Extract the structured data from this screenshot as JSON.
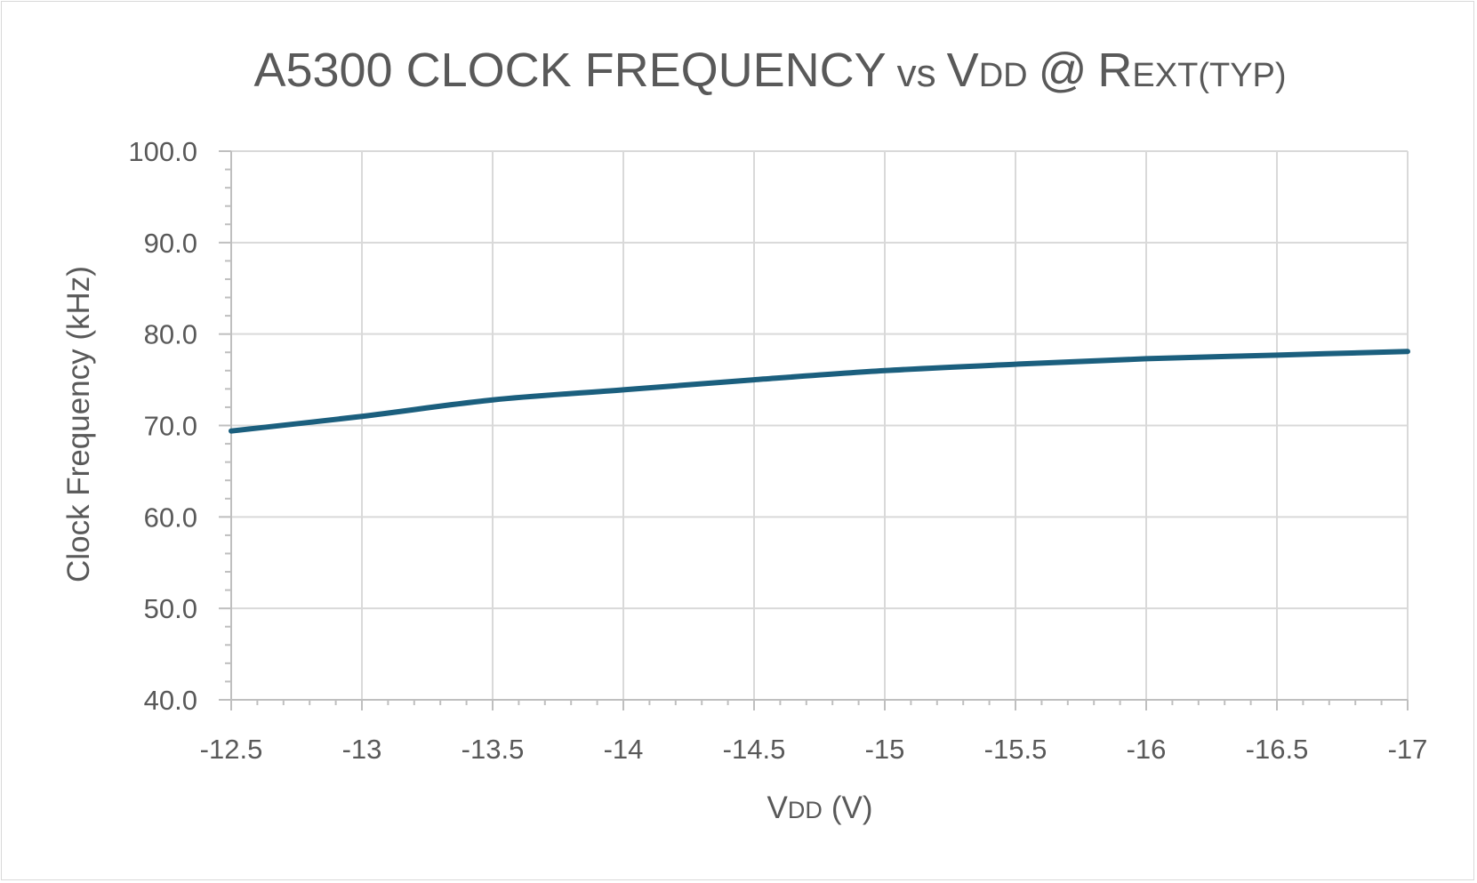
{
  "chart_data": {
    "type": "line",
    "title": "A5300 CLOCK FREQUENCY vs VDD @ REXT(TYP)",
    "title_parts": {
      "main": "A5300 CLOCK FREQUENCY",
      "vs": "vs",
      "v": "V",
      "dd": "DD",
      "at": "@",
      "r": "R",
      "ext": "EXT(TYP)"
    },
    "xlabel": "VDD (V)",
    "xlabel_parts": {
      "v": "V",
      "dd": "DD",
      "unit": "(V)"
    },
    "ylabel": "Clock Frequency (kHz)",
    "x_ticks": [
      "-12.5",
      "-13",
      "-13.5",
      "-14",
      "-14.5",
      "-15",
      "-15.5",
      "-16",
      "-16.5",
      "-17"
    ],
    "y_ticks": [
      "40.0",
      "50.0",
      "60.0",
      "70.0",
      "80.0",
      "90.0",
      "100.0"
    ],
    "xlim": [
      -12.5,
      -17
    ],
    "ylim": [
      40,
      100
    ],
    "grid": true,
    "series": [
      {
        "color": "#1b5f7e",
        "x": [
          -12.5,
          -13,
          -13.5,
          -14,
          -14.5,
          -15,
          -15.5,
          -16,
          -16.5,
          -17
        ],
        "y": [
          69.4,
          71.0,
          72.8,
          73.9,
          75.0,
          76.0,
          76.7,
          77.3,
          77.7,
          78.1
        ]
      }
    ]
  }
}
